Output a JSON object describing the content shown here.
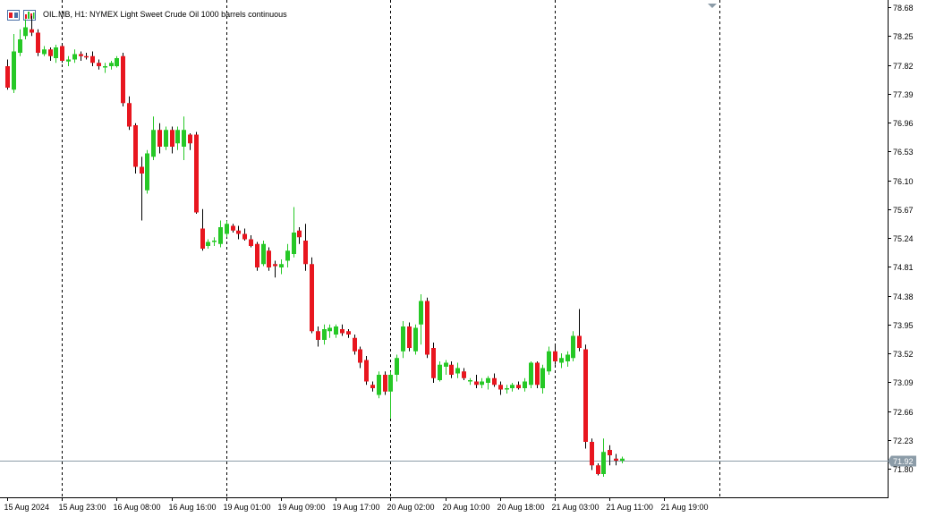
{
  "header": {
    "title": "OIL.MB, H1:  NYMEX Light Sweet Crude Oil 1000 barrels continuous"
  },
  "colors": {
    "bull": "#26c826",
    "bear": "#e8161f",
    "wick": "#000000",
    "grid": "#000000",
    "bid_line": "#8c9ca8",
    "price_tag_bg": "#8c9ca8",
    "price_tag_text": "#ffffff"
  },
  "chart_data": {
    "type": "candlestick",
    "symbol": "OIL.MB",
    "timeframe": "H1",
    "y_ticks": [
      78.68,
      78.25,
      77.82,
      77.39,
      76.96,
      76.53,
      76.1,
      75.67,
      75.24,
      74.81,
      74.38,
      73.95,
      73.52,
      73.09,
      72.66,
      72.23,
      71.8
    ],
    "y_tick_labels": [
      "78.68",
      "78.25",
      "77.82",
      "77.39",
      "76.96",
      "76.53",
      "76.10",
      "75.67",
      "75.24",
      "74.81",
      "74.38",
      "73.95",
      "73.52",
      "73.09",
      "72.66",
      "72.23",
      "71.80"
    ],
    "x_labels": [
      "15 Aug 2024",
      "15 Aug 23:00",
      "16 Aug 08:00",
      "16 Aug 16:00",
      "19 Aug 01:00",
      "19 Aug 09:00",
      "19 Aug 17:00",
      "20 Aug 02:00",
      "20 Aug 10:00",
      "20 Aug 18:00",
      "21 Aug 03:00",
      "21 Aug 11:00",
      "21 Aug 19:00"
    ],
    "x_label_index": [
      0,
      9,
      18,
      27,
      36,
      45,
      54,
      63,
      72,
      81,
      90,
      99,
      108
    ],
    "separator_index": [
      9,
      36,
      63,
      90,
      117
    ],
    "bid_price": 71.92,
    "bid_label": "71.92",
    "ylim": [
      71.64,
      78.73
    ],
    "candles": [
      [
        77.8,
        77.9,
        77.45,
        77.48
      ],
      [
        77.45,
        78.28,
        77.4,
        78.02
      ],
      [
        78.0,
        78.35,
        77.95,
        78.2
      ],
      [
        78.25,
        78.5,
        78.2,
        78.38
      ],
      [
        78.35,
        78.55,
        78.25,
        78.3
      ],
      [
        78.3,
        78.35,
        77.95,
        78.0
      ],
      [
        77.98,
        78.1,
        77.95,
        78.05
      ],
      [
        78.05,
        78.08,
        77.88,
        77.95
      ],
      [
        77.92,
        78.12,
        77.85,
        78.08
      ],
      [
        78.1,
        78.12,
        77.85,
        77.88
      ],
      [
        77.87,
        77.95,
        77.8,
        77.9
      ],
      [
        77.9,
        78.05,
        77.85,
        77.98
      ],
      [
        77.98,
        78.02,
        77.88,
        77.95
      ],
      [
        77.95,
        78.0,
        77.9,
        77.93
      ],
      [
        77.95,
        78.02,
        77.8,
        77.85
      ],
      [
        77.85,
        77.9,
        77.75,
        77.8
      ],
      [
        77.78,
        77.85,
        77.7,
        77.8
      ],
      [
        77.8,
        77.88,
        77.75,
        77.85
      ],
      [
        77.8,
        77.95,
        77.78,
        77.92
      ],
      [
        77.95,
        78.0,
        77.2,
        77.25
      ],
      [
        77.25,
        77.35,
        76.85,
        76.9
      ],
      [
        76.92,
        76.95,
        76.2,
        76.3
      ],
      [
        76.3,
        76.45,
        75.5,
        76.2
      ],
      [
        75.95,
        76.55,
        75.9,
        76.5
      ],
      [
        76.45,
        77.05,
        76.4,
        76.85
      ],
      [
        76.85,
        76.95,
        76.5,
        76.6
      ],
      [
        76.6,
        76.9,
        76.55,
        76.85
      ],
      [
        76.85,
        76.9,
        76.5,
        76.6
      ],
      [
        76.65,
        76.9,
        76.55,
        76.85
      ],
      [
        76.6,
        77.05,
        76.4,
        76.85
      ],
      [
        76.78,
        76.8,
        76.55,
        76.65
      ],
      [
        76.78,
        76.82,
        75.6,
        75.62
      ],
      [
        75.38,
        75.67,
        75.05,
        75.08
      ],
      [
        75.12,
        75.22,
        75.08,
        75.18
      ],
      [
        75.18,
        75.25,
        75.12,
        75.2
      ],
      [
        75.15,
        75.5,
        75.1,
        75.4
      ],
      [
        75.3,
        75.5,
        75.25,
        75.45
      ],
      [
        75.42,
        75.45,
        75.32,
        75.35
      ],
      [
        75.35,
        75.42,
        75.22,
        75.3
      ],
      [
        75.3,
        75.38,
        75.2,
        75.22
      ],
      [
        75.22,
        75.28,
        75.1,
        75.12
      ],
      [
        75.15,
        75.18,
        74.75,
        74.8
      ],
      [
        74.85,
        75.2,
        74.82,
        75.15
      ],
      [
        75.05,
        75.1,
        74.75,
        74.8
      ],
      [
        74.85,
        74.9,
        74.65,
        74.82
      ],
      [
        74.8,
        74.92,
        74.7,
        74.85
      ],
      [
        74.9,
        75.15,
        74.8,
        75.05
      ],
      [
        75.0,
        75.7,
        74.95,
        75.32
      ],
      [
        75.35,
        75.4,
        75.15,
        75.25
      ],
      [
        75.2,
        75.45,
        74.75,
        74.85
      ],
      [
        74.85,
        74.95,
        73.82,
        73.85
      ],
      [
        73.85,
        73.92,
        73.62,
        73.72
      ],
      [
        73.72,
        73.95,
        73.65,
        73.88
      ],
      [
        73.85,
        73.95,
        73.75,
        73.9
      ],
      [
        73.8,
        73.95,
        73.75,
        73.92
      ],
      [
        73.88,
        73.95,
        73.78,
        73.82
      ],
      [
        73.85,
        73.88,
        73.75,
        73.8
      ],
      [
        73.75,
        73.8,
        73.5,
        73.55
      ],
      [
        73.58,
        73.62,
        73.3,
        73.38
      ],
      [
        73.42,
        73.48,
        73.05,
        73.1
      ],
      [
        73.05,
        73.1,
        72.95,
        73.0
      ],
      [
        72.9,
        73.25,
        72.85,
        73.2
      ],
      [
        73.2,
        73.25,
        72.9,
        72.95
      ],
      [
        72.95,
        73.25,
        72.55,
        73.2
      ],
      [
        73.2,
        73.5,
        73.1,
        73.45
      ],
      [
        73.55,
        74.0,
        73.45,
        73.92
      ],
      [
        73.92,
        73.98,
        73.55,
        73.6
      ],
      [
        73.55,
        73.95,
        73.5,
        73.9
      ],
      [
        73.95,
        74.4,
        73.65,
        74.3
      ],
      [
        74.3,
        74.35,
        73.45,
        73.5
      ],
      [
        73.6,
        73.68,
        73.08,
        73.15
      ],
      [
        73.12,
        73.4,
        73.1,
        73.35
      ],
      [
        73.32,
        73.42,
        73.2,
        73.38
      ],
      [
        73.35,
        73.4,
        73.15,
        73.2
      ],
      [
        73.22,
        73.38,
        73.15,
        73.3
      ],
      [
        73.25,
        73.3,
        73.12,
        73.15
      ],
      [
        73.1,
        73.15,
        73.05,
        73.12
      ],
      [
        73.1,
        73.2,
        73.0,
        73.05
      ],
      [
        73.05,
        73.15,
        73.0,
        73.1
      ],
      [
        73.08,
        73.18,
        72.98,
        73.15
      ],
      [
        73.15,
        73.22,
        73.02,
        73.05
      ],
      [
        73.05,
        73.1,
        72.9,
        72.98
      ],
      [
        72.98,
        73.05,
        72.92,
        73.0
      ],
      [
        73.0,
        73.08,
        72.95,
        73.05
      ],
      [
        73.05,
        73.1,
        72.98,
        73.0
      ],
      [
        73.0,
        73.15,
        72.95,
        73.1
      ],
      [
        73.05,
        73.4,
        73.0,
        73.38
      ],
      [
        73.38,
        73.4,
        73.0,
        73.05
      ],
      [
        73.0,
        73.35,
        72.92,
        73.3
      ],
      [
        73.25,
        73.62,
        73.2,
        73.55
      ],
      [
        73.55,
        73.65,
        73.35,
        73.4
      ],
      [
        73.38,
        73.52,
        73.3,
        73.45
      ],
      [
        73.4,
        73.55,
        73.32,
        73.5
      ],
      [
        73.45,
        73.85,
        73.4,
        73.78
      ],
      [
        73.78,
        74.18,
        73.55,
        73.6
      ],
      [
        73.58,
        73.65,
        72.1,
        72.2
      ],
      [
        72.2,
        72.25,
        71.78,
        71.85
      ],
      [
        71.85,
        71.88,
        71.7,
        71.72
      ],
      [
        71.72,
        72.25,
        71.68,
        72.05
      ],
      [
        72.08,
        72.15,
        71.85,
        72.0
      ],
      [
        71.95,
        72.02,
        71.85,
        71.92
      ],
      [
        71.92,
        71.98,
        71.88,
        71.95
      ]
    ]
  }
}
